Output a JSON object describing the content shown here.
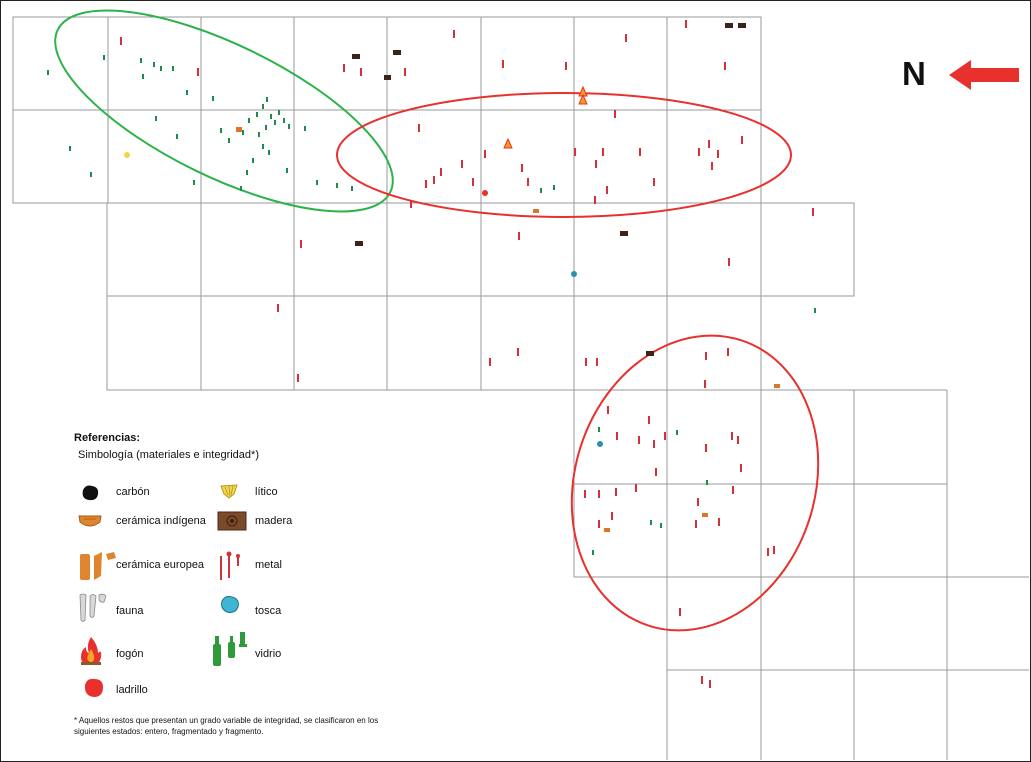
{
  "north": {
    "letter": "N",
    "arrow_color": "#e8312d"
  },
  "colors": {
    "grid": "#9a9a9a",
    "green_ellipse": "#2db34a",
    "red_ellipse": "#e8312d",
    "metal": "#d0313a",
    "glass": "#1f8a4a",
    "charcoal": "#3a2418",
    "tosca": "#2a8fb5"
  },
  "legend": {
    "title": "Referencias:",
    "subtitle": "Simbología (materiales e integridad*)",
    "items": {
      "carbon": {
        "label": "carbón",
        "icon": "charcoal-icon"
      },
      "litico": {
        "label": "lítico",
        "icon": "lithic-icon"
      },
      "ceramica_indigena": {
        "label": "cerámica indígena",
        "icon": "indigenous-ceramic-icon"
      },
      "madera": {
        "label": "madera",
        "icon": "wood-icon"
      },
      "ceramica_europea": {
        "label": "cerámica europea",
        "icon": "european-ceramic-icon"
      },
      "metal": {
        "label": "metal",
        "icon": "metal-nail-icon"
      },
      "fauna": {
        "label": "fauna",
        "icon": "bone-icon"
      },
      "tosca": {
        "label": "tosca",
        "icon": "tosca-icon"
      },
      "fogon": {
        "label": "fogón",
        "icon": "hearth-fire-icon"
      },
      "vidrio": {
        "label": "vidrio",
        "icon": "glass-bottle-icon"
      },
      "ladrillo": {
        "label": "ladrillo",
        "icon": "brick-icon"
      }
    },
    "footnote": "* Aquellos restos que presentan un grado variable de integridad, se clasificaron en los siguientes estados: entero, fragmentado y fragmento."
  }
}
